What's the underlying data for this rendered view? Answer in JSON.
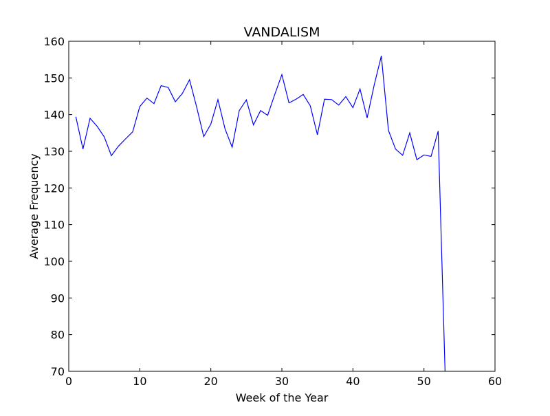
{
  "chart_data": {
    "type": "line",
    "title": "VANDALISM",
    "xlabel": "Week of the Year",
    "ylabel": "Average Frequency",
    "xlim": [
      0,
      60
    ],
    "ylim": [
      70,
      160
    ],
    "xticks": [
      0,
      10,
      20,
      30,
      40,
      50,
      60
    ],
    "yticks": [
      70,
      80,
      90,
      100,
      110,
      120,
      130,
      140,
      150,
      160
    ],
    "grid": false,
    "line_color": "#0000ff",
    "series": [
      {
        "x": [
          1,
          2,
          3,
          4,
          5,
          6,
          7,
          8,
          9,
          10,
          11,
          12,
          13,
          14,
          15,
          16,
          17,
          18,
          19,
          20,
          21,
          22,
          23,
          24,
          25,
          26,
          27,
          28,
          29,
          30,
          31,
          32,
          33,
          34,
          35,
          36,
          37,
          38,
          39,
          40,
          41,
          42,
          43,
          44,
          45,
          46,
          47,
          48,
          49,
          50,
          51,
          52,
          53
        ],
        "values": [
          139.4,
          130.6,
          139.0,
          136.8,
          133.9,
          128.8,
          131.4,
          133.4,
          135.3,
          142.2,
          144.5,
          143.0,
          147.9,
          147.4,
          143.5,
          145.8,
          149.5,
          142.1,
          134.0,
          137.4,
          144.1,
          136.1,
          131.1,
          141.1,
          144.0,
          137.2,
          141.1,
          139.8,
          145.5,
          150.9,
          143.2,
          144.2,
          145.5,
          142.4,
          134.5,
          144.2,
          144.1,
          142.6,
          144.9,
          141.9,
          147.0,
          139.1,
          148.1,
          156.0,
          135.7,
          130.6,
          128.9,
          135.0,
          127.7,
          129.0,
          128.6,
          135.5,
          68.0
        ]
      }
    ]
  }
}
